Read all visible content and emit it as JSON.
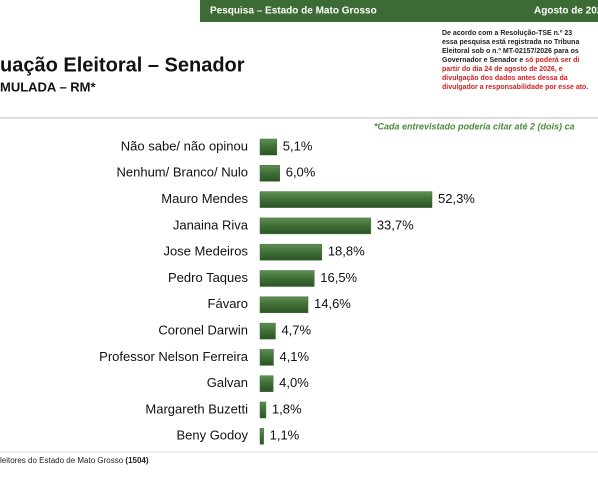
{
  "header": {
    "survey": "Pesquisa – Estado de Mato Grosso",
    "date": "Agosto de 202"
  },
  "legal": [
    {
      "black": "De acordo com a Resolução-TSE n.º 23"
    },
    {
      "black": "essa pesquisa está registrada no Tribuna"
    },
    {
      "black": "Eleitoral sob o n.º MT-02157/2026 para os"
    },
    {
      "black": "Governador e Senador e ",
      "red": "só poderá ser di"
    },
    {
      "red": "partir do dia 24 de agosto de 2026, e"
    },
    {
      "red": "divulgação dos dados antes dessa da"
    },
    {
      "red": "divulgador a responsabilidade por esse ato."
    }
  ],
  "footer": {
    "sample_text": "leitores do Estado de Mato Grosso ",
    "sample_size": "(1504)"
  },
  "chart_data": {
    "type": "bar",
    "orientation": "horizontal",
    "title": "uação Eleitoral – Senador",
    "subtitle": "MULADA – RM*",
    "note": "*Cada entrevistado poderia citar até 2 (dois) ca",
    "color": "#3f6e36",
    "categories": [
      "Não sabe/ não opinou",
      "Nenhum/ Branco/ Nulo",
      "Mauro Mendes",
      "Janaina Riva",
      "Jose Medeiros",
      "Pedro Taques",
      "Fávaro",
      "Coronel Darwin",
      "Professor Nelson Ferreira",
      "Galvan",
      "Margareth Buzetti",
      "Beny Godoy"
    ],
    "values": [
      5.1,
      6.0,
      52.3,
      33.7,
      18.8,
      16.5,
      14.6,
      4.7,
      4.1,
      4.0,
      1.8,
      1.1
    ],
    "value_labels": [
      "5,1%",
      "6,0%",
      "52,3%",
      "33,7%",
      "18,8%",
      "16,5%",
      "14,6%",
      "4,7%",
      "4,1%",
      "4,0%",
      "1,8%",
      "1,1%"
    ]
  }
}
